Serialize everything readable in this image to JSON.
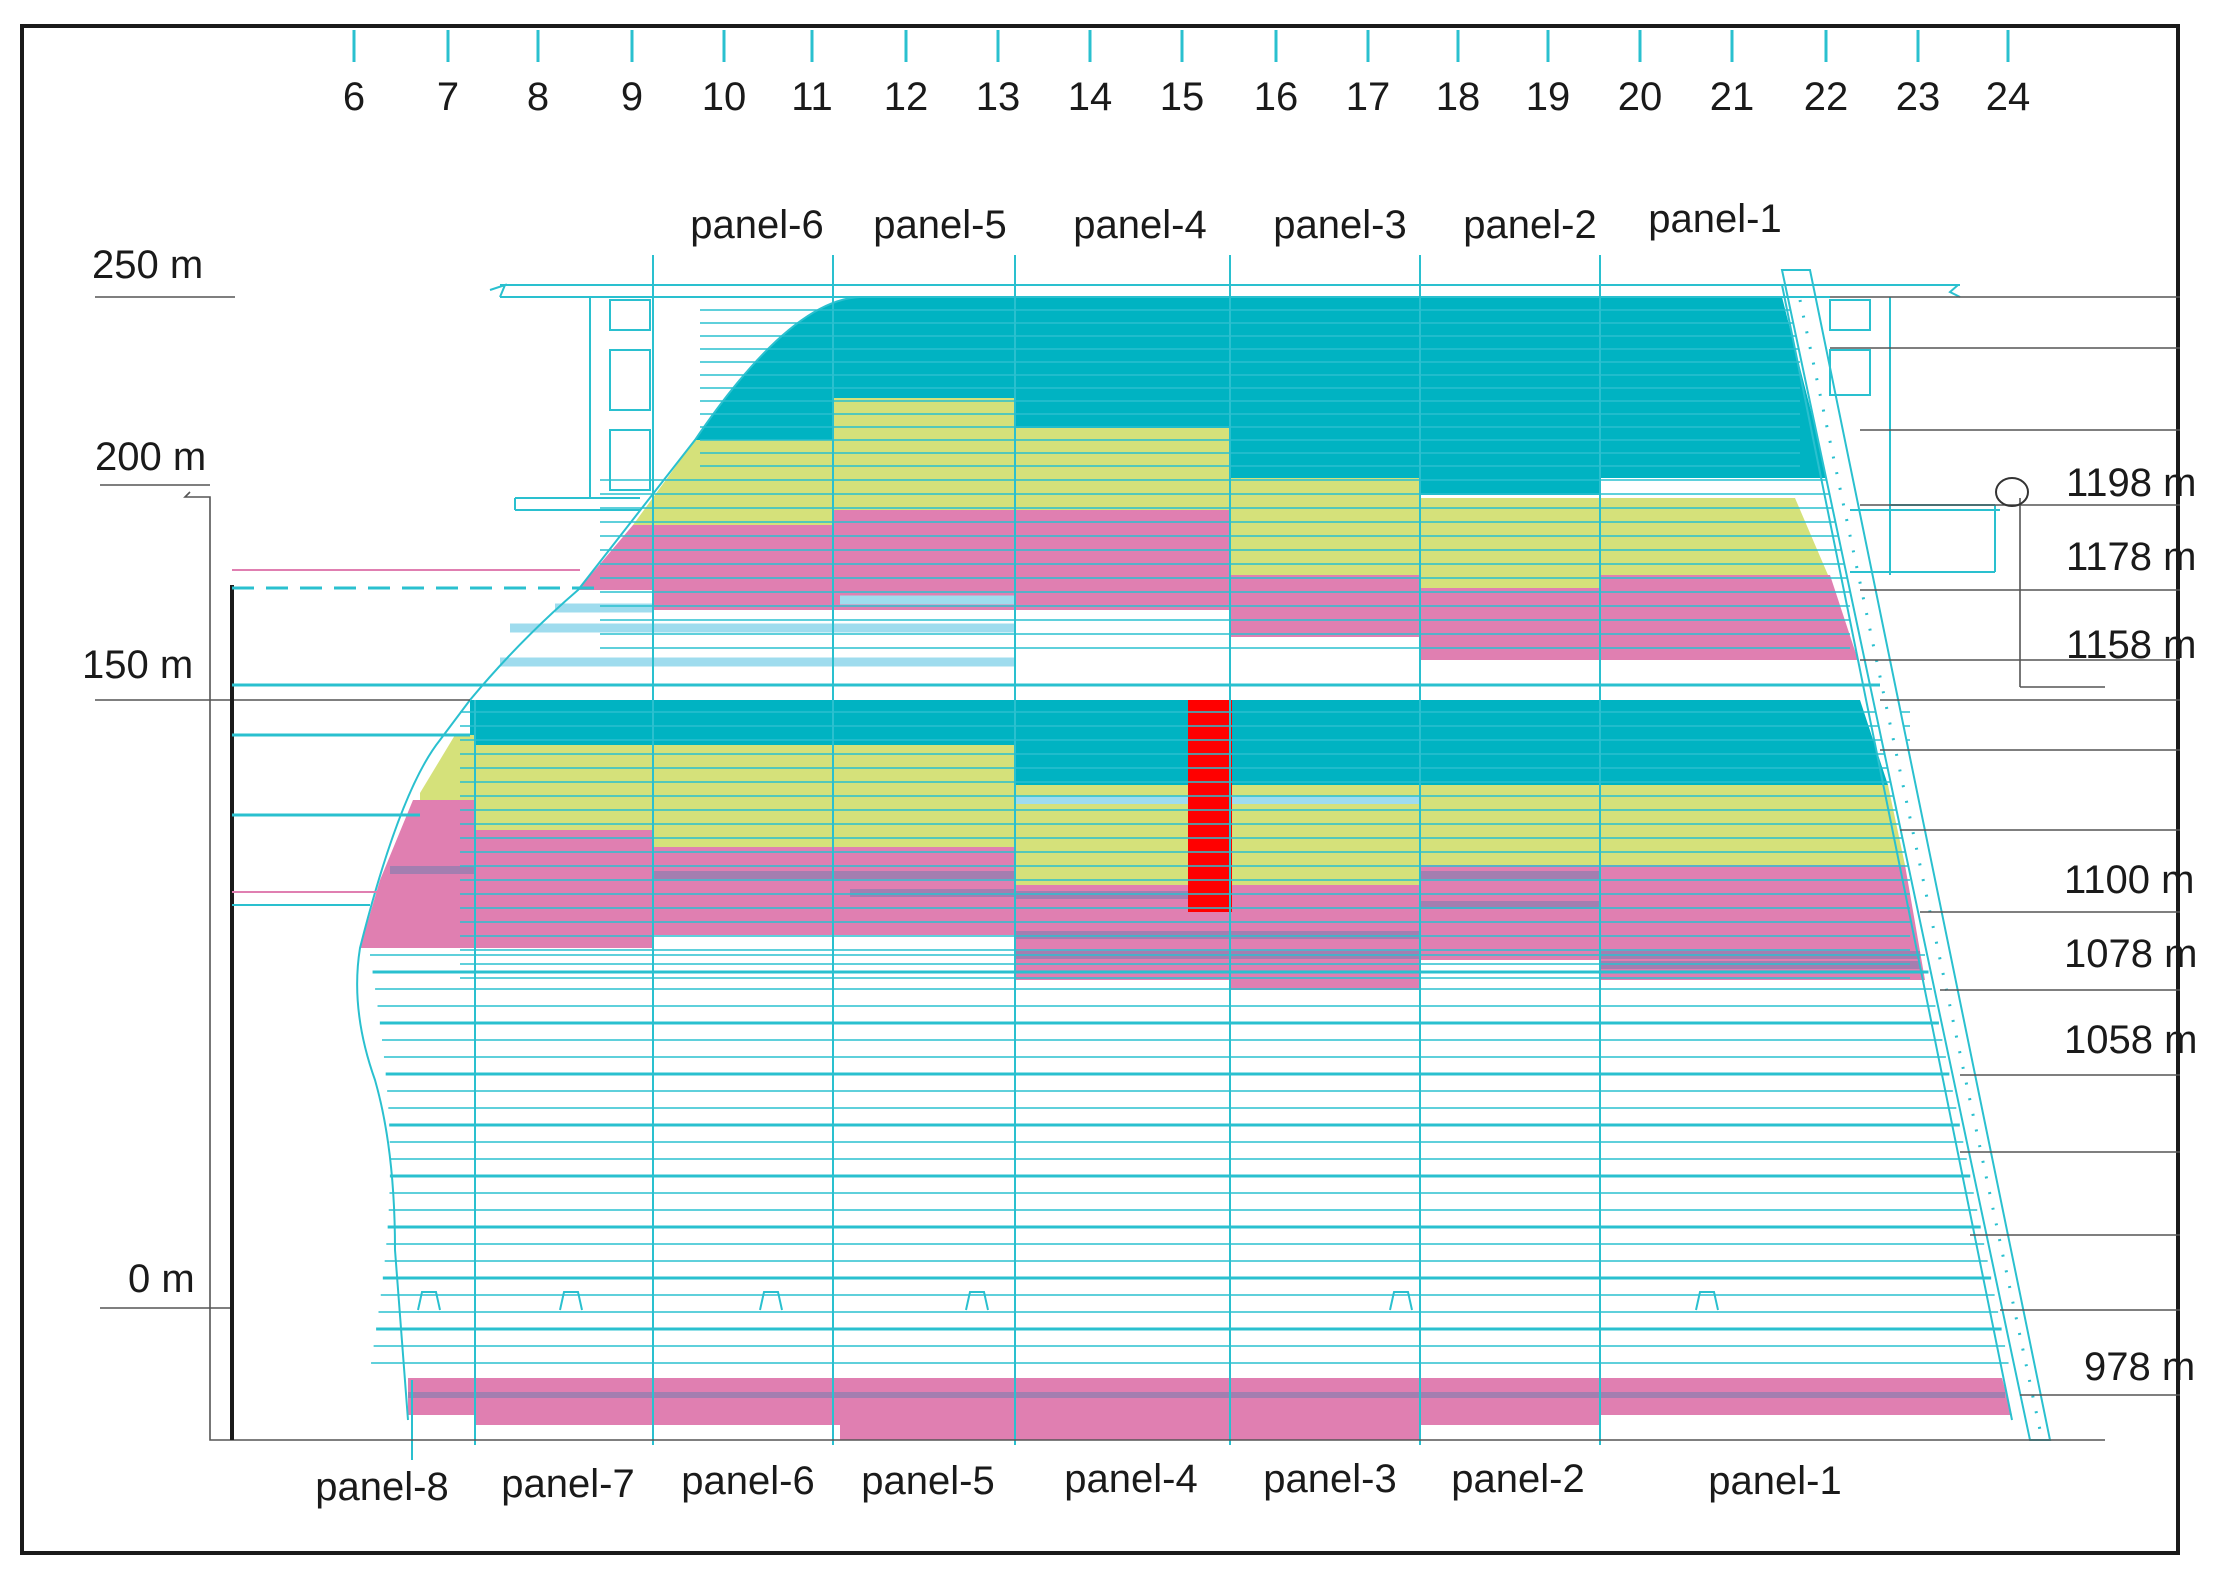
{
  "column_numbers": [
    "6",
    "7",
    "8",
    "9",
    "10",
    "11",
    "12",
    "13",
    "14",
    "15",
    "16",
    "17",
    "18",
    "19",
    "20",
    "21",
    "22",
    "23",
    "24"
  ],
  "panels_top": [
    "panel-6",
    "panel-5",
    "panel-4",
    "panel-3",
    "panel-2",
    "panel-1"
  ],
  "panels_bottom": [
    "panel-8",
    "panel-7",
    "panel-6",
    "panel-5",
    "panel-4",
    "panel-3",
    "panel-2",
    "panel-1"
  ],
  "scale_labels": [
    "250 m",
    "200 m",
    "150 m",
    "0 m"
  ],
  "elevation_labels": [
    "1198 m",
    "1178 m",
    "1158 m",
    "1100 m",
    "1078 m",
    "1058 m",
    "978 m"
  ],
  "colors": {
    "cyan": "#00b3c2",
    "yellow": "#d5e17a",
    "pink": "#e07fb1",
    "purple": "#a47eb0",
    "light_blue": "#9fdcee",
    "line_cyan": "#2ac0cf",
    "red": "#ff0000",
    "frame": "#1a1a1a"
  }
}
